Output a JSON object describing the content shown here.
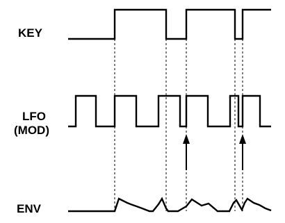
{
  "labels": {
    "key": "KEY",
    "lfo_line1": "LFO",
    "lfo_line2": "(MOD)",
    "env": "ENV"
  }
}
